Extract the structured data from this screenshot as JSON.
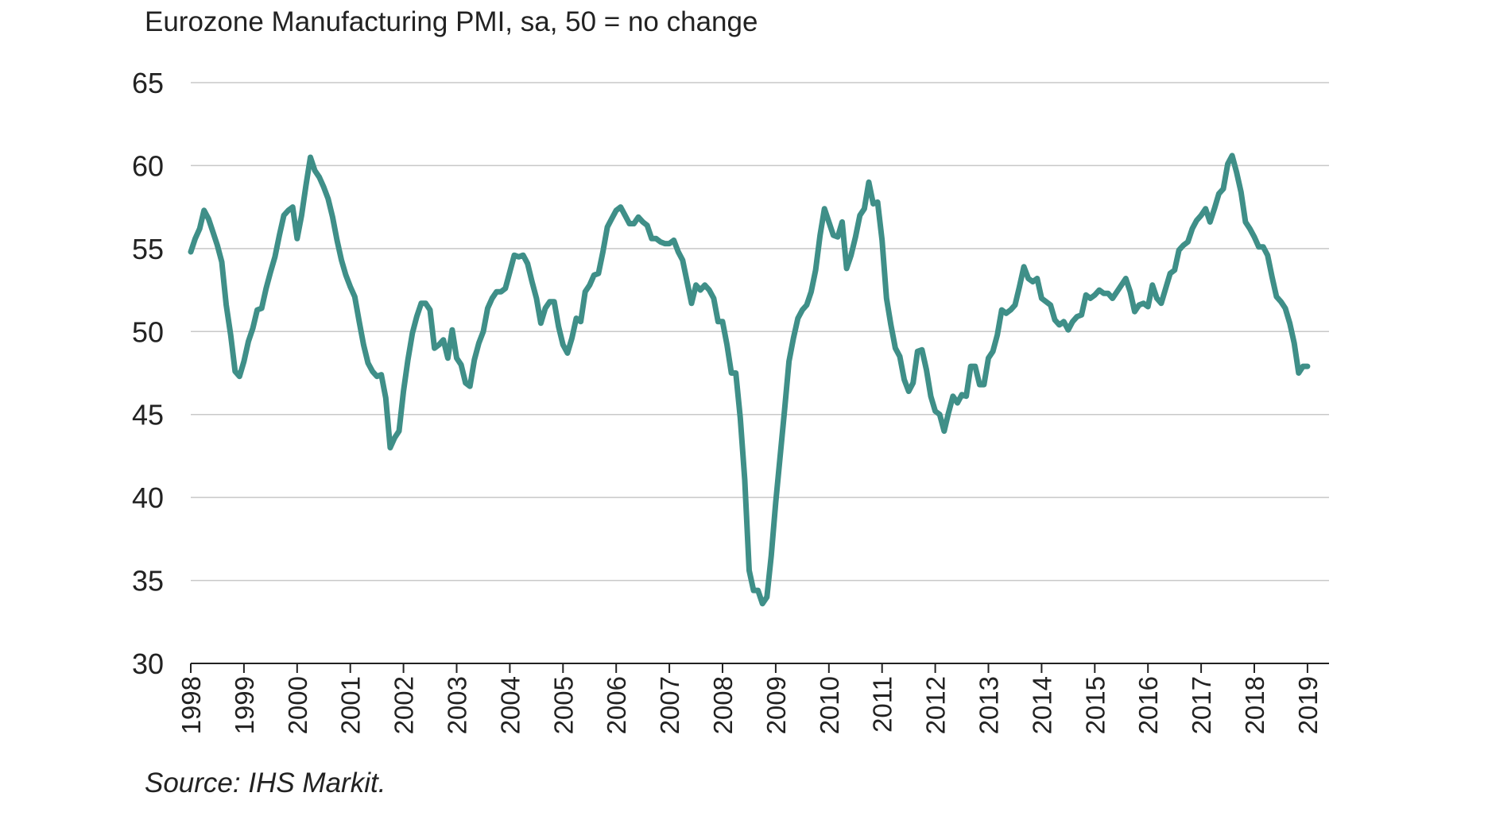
{
  "chart_data": {
    "type": "line",
    "title": "Eurozone Manufacturing PMI, sa, 50 = no change",
    "source": "Source: IHS Markit.",
    "xlabel": "",
    "ylabel": "",
    "ylim": [
      30,
      65
    ],
    "y_ticks": [
      "30",
      "35",
      "40",
      "45",
      "50",
      "55",
      "60",
      "65"
    ],
    "x_ticks": [
      "1998",
      "1999",
      "2000",
      "2001",
      "2002",
      "2003",
      "2004",
      "2005",
      "2006",
      "2007",
      "2008",
      "2009",
      "2010",
      "2011",
      "2012",
      "2013",
      "2014",
      "2015",
      "2016",
      "2017",
      "2018",
      "2019"
    ],
    "grid": true,
    "line_color": "#3f8f88",
    "grid_color": "#c8c8c8",
    "series": [
      {
        "points": [
          [
            "1998-01",
            54.8
          ],
          [
            "1998-02",
            55.6
          ],
          [
            "1998-03",
            56.2
          ],
          [
            "1998-04",
            57.3
          ],
          [
            "1998-05",
            56.8
          ],
          [
            "1998-06",
            56.0
          ],
          [
            "1998-07",
            55.2
          ],
          [
            "1998-08",
            54.2
          ],
          [
            "1998-09",
            51.6
          ],
          [
            "1998-10",
            49.8
          ],
          [
            "1998-11",
            47.6
          ],
          [
            "1998-12",
            47.3
          ],
          [
            "1999-01",
            48.2
          ],
          [
            "1999-02",
            49.4
          ],
          [
            "1999-03",
            50.2
          ],
          [
            "1999-04",
            51.3
          ],
          [
            "1999-05",
            51.4
          ],
          [
            "1999-06",
            52.6
          ],
          [
            "1999-07",
            53.6
          ],
          [
            "1999-08",
            54.5
          ],
          [
            "1999-09",
            55.8
          ],
          [
            "1999-10",
            57.0
          ],
          [
            "1999-11",
            57.3
          ],
          [
            "1999-12",
            57.5
          ],
          [
            "2000-01",
            55.6
          ],
          [
            "2000-02",
            57.0
          ],
          [
            "2000-03",
            58.8
          ],
          [
            "2000-04",
            60.5
          ],
          [
            "2000-05",
            59.7
          ],
          [
            "2000-06",
            59.3
          ],
          [
            "2000-07",
            58.7
          ],
          [
            "2000-08",
            58.0
          ],
          [
            "2000-09",
            56.9
          ],
          [
            "2000-10",
            55.5
          ],
          [
            "2000-11",
            54.3
          ],
          [
            "2000-12",
            53.4
          ],
          [
            "2001-01",
            52.7
          ],
          [
            "2001-02",
            52.1
          ],
          [
            "2001-03",
            50.6
          ],
          [
            "2001-04",
            49.2
          ],
          [
            "2001-05",
            48.1
          ],
          [
            "2001-06",
            47.6
          ],
          [
            "2001-07",
            47.3
          ],
          [
            "2001-08",
            47.4
          ],
          [
            "2001-09",
            46.0
          ],
          [
            "2001-10",
            43.0
          ],
          [
            "2001-11",
            43.6
          ],
          [
            "2001-12",
            44.0
          ],
          [
            "2002-01",
            46.4
          ],
          [
            "2002-02",
            48.3
          ],
          [
            "2002-03",
            49.9
          ],
          [
            "2002-04",
            50.9
          ],
          [
            "2002-05",
            51.7
          ],
          [
            "2002-06",
            51.7
          ],
          [
            "2002-07",
            51.3
          ],
          [
            "2002-08",
            49.0
          ],
          [
            "2002-09",
            49.2
          ],
          [
            "2002-10",
            49.5
          ],
          [
            "2002-11",
            48.4
          ],
          [
            "2002-12",
            50.1
          ],
          [
            "2003-01",
            48.4
          ],
          [
            "2003-02",
            48.0
          ],
          [
            "2003-03",
            46.9
          ],
          [
            "2003-04",
            46.7
          ],
          [
            "2003-05",
            48.3
          ],
          [
            "2003-06",
            49.3
          ],
          [
            "2003-07",
            50.0
          ],
          [
            "2003-08",
            51.4
          ],
          [
            "2003-09",
            52.0
          ],
          [
            "2003-10",
            52.4
          ],
          [
            "2003-11",
            52.4
          ],
          [
            "2003-12",
            52.6
          ],
          [
            "2004-01",
            53.6
          ],
          [
            "2004-02",
            54.6
          ],
          [
            "2004-03",
            54.5
          ],
          [
            "2004-04",
            54.6
          ],
          [
            "2004-05",
            54.1
          ],
          [
            "2004-06",
            53.0
          ],
          [
            "2004-07",
            52.0
          ],
          [
            "2004-08",
            50.5
          ],
          [
            "2004-09",
            51.4
          ],
          [
            "2004-10",
            51.8
          ],
          [
            "2004-11",
            51.8
          ],
          [
            "2004-12",
            50.3
          ],
          [
            "2005-01",
            49.2
          ],
          [
            "2005-02",
            48.7
          ],
          [
            "2005-03",
            49.6
          ],
          [
            "2005-04",
            50.8
          ],
          [
            "2005-05",
            50.6
          ],
          [
            "2005-06",
            52.4
          ],
          [
            "2005-07",
            52.8
          ],
          [
            "2005-08",
            53.4
          ],
          [
            "2005-09",
            53.5
          ],
          [
            "2005-10",
            54.8
          ],
          [
            "2005-11",
            56.3
          ],
          [
            "2005-12",
            56.8
          ],
          [
            "2006-01",
            57.3
          ],
          [
            "2006-02",
            57.5
          ],
          [
            "2006-03",
            57.0
          ],
          [
            "2006-04",
            56.5
          ],
          [
            "2006-05",
            56.5
          ],
          [
            "2006-06",
            56.9
          ],
          [
            "2006-07",
            56.6
          ],
          [
            "2006-08",
            56.4
          ],
          [
            "2006-09",
            55.6
          ],
          [
            "2006-10",
            55.6
          ],
          [
            "2006-11",
            55.4
          ],
          [
            "2006-12",
            55.3
          ],
          [
            "2007-01",
            55.3
          ],
          [
            "2007-02",
            55.5
          ],
          [
            "2007-03",
            54.8
          ],
          [
            "2007-04",
            54.3
          ],
          [
            "2007-05",
            53.0
          ],
          [
            "2007-06",
            51.7
          ],
          [
            "2007-07",
            52.8
          ],
          [
            "2007-08",
            52.5
          ],
          [
            "2007-09",
            52.8
          ],
          [
            "2007-10",
            52.5
          ],
          [
            "2007-11",
            52.0
          ],
          [
            "2007-12",
            50.6
          ],
          [
            "2008-01",
            50.6
          ],
          [
            "2008-02",
            49.2
          ],
          [
            "2008-03",
            47.5
          ],
          [
            "2008-04",
            47.5
          ],
          [
            "2008-05",
            44.8
          ],
          [
            "2008-06",
            41.1
          ],
          [
            "2008-07",
            35.6
          ],
          [
            "2008-08",
            34.4
          ],
          [
            "2008-09",
            34.4
          ],
          [
            "2008-10",
            33.6
          ],
          [
            "2008-11",
            34.0
          ],
          [
            "2008-12",
            36.5
          ],
          [
            "2009-01",
            39.7
          ],
          [
            "2009-02",
            42.5
          ],
          [
            "2009-03",
            45.3
          ],
          [
            "2009-04",
            48.2
          ],
          [
            "2009-05",
            49.6
          ],
          [
            "2009-06",
            50.8
          ],
          [
            "2009-07",
            51.3
          ],
          [
            "2009-08",
            51.6
          ],
          [
            "2009-09",
            52.4
          ],
          [
            "2009-10",
            53.7
          ],
          [
            "2009-11",
            55.8
          ],
          [
            "2009-12",
            57.4
          ],
          [
            "2010-01",
            56.6
          ],
          [
            "2010-02",
            55.8
          ],
          [
            "2010-03",
            55.7
          ],
          [
            "2010-04",
            56.6
          ],
          [
            "2010-05",
            53.8
          ],
          [
            "2010-06",
            54.6
          ],
          [
            "2010-07",
            55.7
          ],
          [
            "2010-08",
            57.0
          ],
          [
            "2010-09",
            57.4
          ],
          [
            "2010-10",
            59.0
          ],
          [
            "2010-11",
            57.7
          ],
          [
            "2010-12",
            57.8
          ],
          [
            "2011-01",
            55.5
          ],
          [
            "2011-02",
            52.0
          ],
          [
            "2011-03",
            50.4
          ],
          [
            "2011-04",
            49.0
          ],
          [
            "2011-05",
            48.5
          ],
          [
            "2011-06",
            47.1
          ],
          [
            "2011-07",
            46.4
          ],
          [
            "2011-08",
            46.9
          ],
          [
            "2011-09",
            48.8
          ],
          [
            "2011-10",
            48.9
          ],
          [
            "2011-11",
            47.7
          ],
          [
            "2011-12",
            46.1
          ],
          [
            "2012-01",
            45.2
          ],
          [
            "2012-02",
            45.0
          ],
          [
            "2012-03",
            44.0
          ],
          [
            "2012-04",
            45.1
          ],
          [
            "2012-05",
            46.1
          ],
          [
            "2012-06",
            45.7
          ],
          [
            "2012-07",
            46.2
          ],
          [
            "2012-08",
            46.1
          ],
          [
            "2012-09",
            47.9
          ],
          [
            "2012-10",
            47.9
          ],
          [
            "2012-11",
            46.8
          ],
          [
            "2012-12",
            46.8
          ],
          [
            "2013-01",
            48.4
          ],
          [
            "2013-02",
            48.8
          ],
          [
            "2013-03",
            49.8
          ],
          [
            "2013-04",
            51.3
          ],
          [
            "2013-05",
            51.1
          ],
          [
            "2013-06",
            51.3
          ],
          [
            "2013-07",
            51.6
          ],
          [
            "2013-08",
            52.7
          ],
          [
            "2013-09",
            53.9
          ],
          [
            "2013-10",
            53.2
          ],
          [
            "2013-11",
            53.0
          ],
          [
            "2013-12",
            53.2
          ],
          [
            "2014-01",
            52.0
          ],
          [
            "2014-02",
            51.8
          ],
          [
            "2014-03",
            51.6
          ],
          [
            "2014-04",
            50.7
          ],
          [
            "2014-05",
            50.4
          ],
          [
            "2014-06",
            50.6
          ],
          [
            "2014-07",
            50.1
          ],
          [
            "2014-08",
            50.6
          ],
          [
            "2014-09",
            50.9
          ],
          [
            "2014-10",
            51.0
          ],
          [
            "2014-11",
            52.2
          ],
          [
            "2014-12",
            52.0
          ],
          [
            "2015-01",
            52.2
          ],
          [
            "2015-02",
            52.5
          ],
          [
            "2015-03",
            52.3
          ],
          [
            "2015-04",
            52.3
          ],
          [
            "2015-05",
            52.0
          ],
          [
            "2015-06",
            52.4
          ],
          [
            "2015-07",
            52.8
          ],
          [
            "2015-08",
            53.2
          ],
          [
            "2015-09",
            52.4
          ],
          [
            "2015-10",
            51.2
          ],
          [
            "2015-11",
            51.6
          ],
          [
            "2015-12",
            51.7
          ],
          [
            "2016-01",
            51.5
          ],
          [
            "2016-02",
            52.8
          ],
          [
            "2016-03",
            52.0
          ],
          [
            "2016-04",
            51.7
          ],
          [
            "2016-05",
            52.6
          ],
          [
            "2016-06",
            53.5
          ],
          [
            "2016-07",
            53.7
          ],
          [
            "2016-08",
            54.9
          ],
          [
            "2016-09",
            55.2
          ],
          [
            "2016-10",
            55.4
          ],
          [
            "2016-11",
            56.2
          ],
          [
            "2016-12",
            56.7
          ],
          [
            "2017-01",
            57.0
          ],
          [
            "2017-02",
            57.4
          ],
          [
            "2017-03",
            56.6
          ],
          [
            "2017-04",
            57.4
          ],
          [
            "2017-05",
            58.3
          ],
          [
            "2017-06",
            58.6
          ],
          [
            "2017-07",
            60.1
          ],
          [
            "2017-08",
            60.6
          ],
          [
            "2017-09",
            59.6
          ],
          [
            "2017-10",
            58.4
          ],
          [
            "2017-11",
            56.6
          ],
          [
            "2017-12",
            56.2
          ],
          [
            "2018-01",
            55.7
          ],
          [
            "2018-02",
            55.1
          ],
          [
            "2018-03",
            55.1
          ],
          [
            "2018-04",
            54.6
          ],
          [
            "2018-05",
            53.3
          ],
          [
            "2018-06",
            52.1
          ],
          [
            "2018-07",
            51.8
          ],
          [
            "2018-08",
            51.4
          ],
          [
            "2018-09",
            50.5
          ],
          [
            "2018-10",
            49.3
          ],
          [
            "2018-11",
            47.5
          ],
          [
            "2018-12",
            47.9
          ],
          [
            "2019-01",
            47.9
          ]
        ]
      }
    ]
  }
}
